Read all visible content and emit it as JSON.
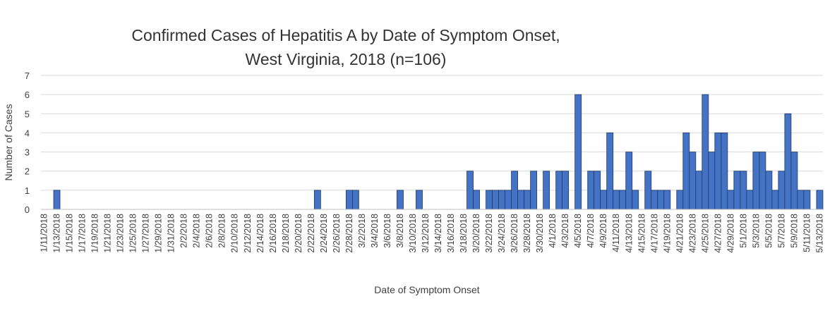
{
  "chart_data": {
    "type": "bar",
    "title": [
      "Confirmed Cases of Hepatitis A by Date of Symptom Onset,",
      "West Virginia, 2018 (n=106)"
    ],
    "x_label": "Date of Symptom Onset",
    "y_label": "Number of Cases",
    "color": "#4472c4",
    "grid": true,
    "ylim": [
      0,
      7
    ],
    "yticks": [
      0,
      1,
      2,
      3,
      4,
      5,
      6,
      7
    ],
    "categories": [
      "1/11/2018",
      null,
      "1/13/2018",
      null,
      "1/15/2018",
      null,
      "1/17/2018",
      null,
      "1/19/2018",
      null,
      "1/21/2018",
      null,
      "1/23/2018",
      null,
      "1/25/2018",
      null,
      "1/27/2018",
      null,
      "1/29/2018",
      null,
      "1/31/2018",
      null,
      "2/2/2018",
      null,
      "2/4/2018",
      null,
      "2/6/2018",
      null,
      "2/8/2018",
      null,
      "2/10/2018",
      null,
      "2/12/2018",
      null,
      "2/14/2018",
      null,
      "2/16/2018",
      null,
      "2/18/2018",
      null,
      "2/20/2018",
      null,
      "2/22/2018",
      null,
      "2/24/2018",
      null,
      "2/26/2018",
      null,
      "2/28/2018",
      null,
      "3/2/2018",
      null,
      "3/4/2018",
      null,
      "3/6/2018",
      null,
      "3/8/2018",
      null,
      "3/10/2018",
      null,
      "3/12/2018",
      null,
      "3/14/2018",
      null,
      "3/16/2018",
      null,
      "3/18/2018",
      null,
      "3/20/2018",
      null,
      "3/22/2018",
      null,
      "3/24/2018",
      null,
      "3/26/2018",
      null,
      "3/28/2018",
      null,
      "3/30/2018",
      null,
      "4/1/2018",
      null,
      "4/3/2018",
      null,
      "4/5/2018",
      null,
      "4/7/2018",
      null,
      "4/9/2018",
      null,
      "4/11/2018",
      null,
      "4/13/2018",
      null,
      "4/15/2018",
      null,
      "4/17/2018",
      null,
      "4/19/2018",
      null,
      "4/21/2018",
      null,
      "4/23/2018",
      null,
      "4/25/2018",
      null,
      "4/27/2018",
      null,
      "4/29/2018",
      null,
      "5/1/2018",
      null,
      "5/3/2018",
      null,
      "5/5/2018",
      null,
      "5/7/2018",
      null,
      "5/9/2018",
      null,
      "5/11/2018",
      null,
      "5/13/2018"
    ],
    "values": [
      0,
      0,
      1,
      0,
      0,
      0,
      0,
      0,
      0,
      0,
      0,
      0,
      0,
      0,
      0,
      0,
      0,
      0,
      0,
      0,
      0,
      0,
      0,
      0,
      0,
      0,
      0,
      0,
      0,
      0,
      0,
      0,
      0,
      0,
      0,
      0,
      0,
      0,
      0,
      0,
      0,
      0,
      0,
      1,
      0,
      0,
      0,
      0,
      1,
      1,
      0,
      0,
      0,
      0,
      0,
      0,
      1,
      0,
      0,
      1,
      0,
      0,
      0,
      0,
      0,
      0,
      0,
      2,
      1,
      0,
      1,
      1,
      1,
      1,
      2,
      1,
      1,
      2,
      0,
      2,
      0,
      2,
      2,
      0,
      6,
      0,
      2,
      2,
      1,
      4,
      1,
      1,
      3,
      1,
      0,
      2,
      1,
      1,
      1,
      0,
      1,
      4,
      3,
      2,
      6,
      3,
      4,
      4,
      1,
      2,
      2,
      1,
      3,
      3,
      2,
      1,
      2,
      5,
      3,
      1,
      1,
      0,
      1
    ]
  }
}
